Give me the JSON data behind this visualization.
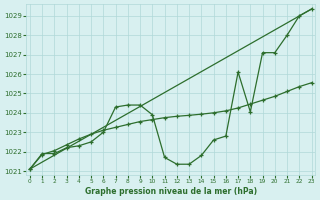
{
  "background_color": "#d8f0f0",
  "grid_color": "#b0d8d8",
  "line_color": "#2d6e2d",
  "xlabel": "Graphe pression niveau de la mer (hPa)",
  "ylim": [
    1020.8,
    1029.6
  ],
  "xlim": [
    -0.3,
    23.3
  ],
  "yticks": [
    1021,
    1022,
    1023,
    1024,
    1025,
    1026,
    1027,
    1028,
    1029
  ],
  "xticks": [
    0,
    1,
    2,
    3,
    4,
    5,
    6,
    7,
    8,
    9,
    10,
    11,
    12,
    13,
    14,
    15,
    16,
    17,
    18,
    19,
    20,
    21,
    22,
    23
  ],
  "series1_x": [
    0,
    1,
    2,
    3,
    4,
    5,
    6,
    7,
    8,
    9,
    10,
    11,
    12,
    13,
    14,
    15,
    16,
    17,
    18,
    19,
    20,
    21,
    22,
    23
  ],
  "series1_y": [
    1021.1,
    1021.9,
    1021.9,
    1022.2,
    1022.3,
    1022.5,
    1023.0,
    1024.3,
    1024.4,
    1024.4,
    1023.9,
    1021.7,
    1021.35,
    1021.35,
    1021.8,
    1022.6,
    1022.8,
    1026.1,
    1024.05,
    1027.1,
    1027.1,
    1028.0,
    1029.0,
    1029.35
  ],
  "series2_x": [
    0,
    1,
    2,
    3,
    4,
    5,
    6,
    7,
    8,
    9,
    10,
    11,
    12,
    13,
    14,
    15,
    16,
    17,
    18,
    19,
    20,
    21,
    22,
    23
  ],
  "series2_y": [
    1021.1,
    1021.85,
    1022.05,
    1022.35,
    1022.65,
    1022.9,
    1023.1,
    1023.25,
    1023.4,
    1023.55,
    1023.65,
    1023.75,
    1023.82,
    1023.87,
    1023.93,
    1024.0,
    1024.1,
    1024.25,
    1024.45,
    1024.65,
    1024.85,
    1025.1,
    1025.35,
    1025.55
  ],
  "series3_x": [
    0,
    23
  ],
  "series3_y": [
    1021.1,
    1029.35
  ]
}
